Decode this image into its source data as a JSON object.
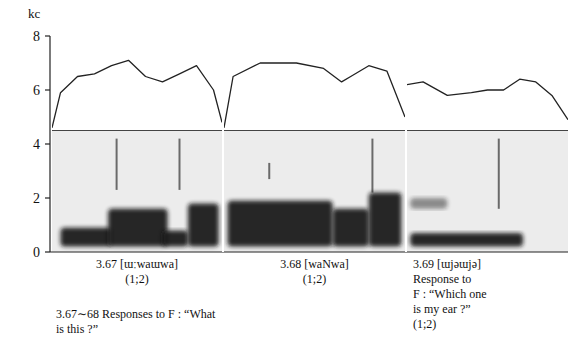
{
  "chart_data": {
    "type": "spectrogram",
    "y_label": "kc",
    "ylim": [
      0,
      8
    ],
    "yticks": [
      0,
      2,
      4,
      6,
      8
    ],
    "xlim": [
      0,
      100
    ],
    "reference_line": 4.5,
    "color": "#151515",
    "note": [
      "3.67∼68 Responses to F : “What",
      "is this ?”"
    ],
    "panels": [
      {
        "caption": [
          "3.67 [ɯːwaɯwa]",
          "(1;2)"
        ],
        "x": [
          0,
          5,
          15,
          25,
          35,
          45,
          55,
          65,
          75,
          85,
          95,
          100
        ],
        "contour": [
          4.6,
          5.9,
          6.5,
          6.6,
          6.9,
          7.1,
          6.5,
          6.3,
          6.6,
          6.9,
          6.0,
          4.8
        ],
        "bursts": [
          {
            "t": [
              5,
              35
            ],
            "f": [
              0.2,
              0.9
            ]
          },
          {
            "t": [
              33,
              68
            ],
            "f": [
              0.2,
              1.6
            ]
          },
          {
            "t": [
              65,
              80
            ],
            "f": [
              0.2,
              0.8
            ]
          },
          {
            "t": [
              80,
              98
            ],
            "f": [
              0.2,
              1.8
            ]
          }
        ],
        "striations": [
          {
            "t": 38,
            "f": [
              2.3,
              4.2
            ]
          },
          {
            "t": 75,
            "f": [
              2.3,
              4.2
            ]
          }
        ]
      },
      {
        "caption": [
          "3.68 [waNwa]",
          "(1;2)"
        ],
        "x": [
          0,
          5,
          20,
          40,
          55,
          65,
          70,
          80,
          90,
          100
        ],
        "contour": [
          4.6,
          6.5,
          7.0,
          7.0,
          6.8,
          6.3,
          6.5,
          6.9,
          6.7,
          5.0
        ],
        "bursts": [
          {
            "t": [
              2,
              60
            ],
            "f": [
              0.2,
              1.9
            ]
          },
          {
            "t": [
              60,
              80
            ],
            "f": [
              0.2,
              1.6
            ]
          },
          {
            "t": [
              80,
              98
            ],
            "f": [
              0.2,
              2.2
            ]
          }
        ],
        "striations": [
          {
            "t": 25,
            "f": [
              2.7,
              3.3
            ]
          },
          {
            "t": 82,
            "f": [
              2.2,
              4.2
            ]
          }
        ]
      },
      {
        "caption": [
          "3.69 [ɯjəɯjə]",
          "Response to",
          "F : “Which one",
          "is my ear ?”",
          "(1;2)"
        ],
        "x": [
          0,
          10,
          25,
          40,
          50,
          60,
          70,
          80,
          90,
          100
        ],
        "contour": [
          6.2,
          6.3,
          5.8,
          5.9,
          6.0,
          6.0,
          6.4,
          6.3,
          5.8,
          4.9
        ],
        "bursts": [
          {
            "t": [
              2,
              25
            ],
            "f": [
              1.6,
              2.0
            ]
          },
          {
            "t": [
              2,
              72
            ],
            "f": [
              0.2,
              0.7
            ]
          }
        ],
        "striations": [
          {
            "t": 57,
            "f": [
              1.6,
              4.2
            ]
          }
        ]
      }
    ]
  }
}
